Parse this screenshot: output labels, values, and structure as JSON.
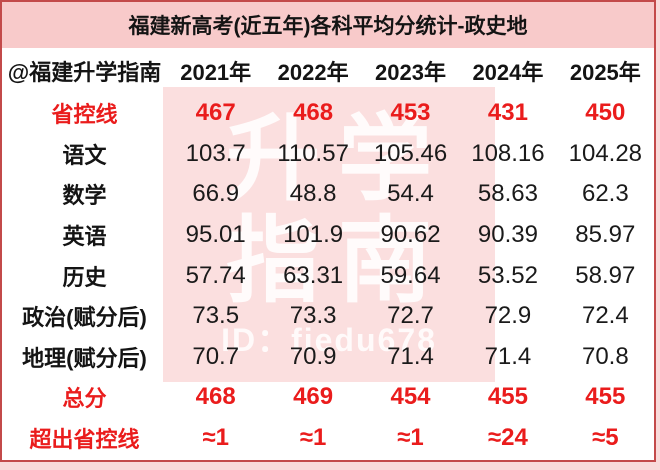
{
  "title": "福建新高考(近五年)各科平均分统计-政史地",
  "watermark": {
    "line1": "升学",
    "line2": "指南",
    "id_line": "ID：fiedu678"
  },
  "table": {
    "corner_label": "@福建升学指南",
    "years": [
      "2021年",
      "2022年",
      "2023年",
      "2024年",
      "2025年"
    ],
    "rows": [
      {
        "label": "省控线",
        "values": [
          "467",
          "468",
          "453",
          "431",
          "450"
        ],
        "highlight": true
      },
      {
        "label": "语文",
        "values": [
          "103.7",
          "110.57",
          "105.46",
          "108.16",
          "104.28"
        ],
        "highlight": false
      },
      {
        "label": "数学",
        "values": [
          "66.9",
          "48.8",
          "54.4",
          "58.63",
          "62.3"
        ],
        "highlight": false
      },
      {
        "label": "英语",
        "values": [
          "95.01",
          "101.9",
          "90.62",
          "90.39",
          "85.97"
        ],
        "highlight": false
      },
      {
        "label": "历史",
        "values": [
          "57.74",
          "63.31",
          "59.64",
          "53.52",
          "58.97"
        ],
        "highlight": false
      },
      {
        "label": "政治(赋分后)",
        "values": [
          "73.5",
          "73.3",
          "72.7",
          "72.9",
          "72.4"
        ],
        "highlight": false
      },
      {
        "label": "地理(赋分后)",
        "values": [
          "70.7",
          "70.9",
          "71.4",
          "71.4",
          "70.8"
        ],
        "highlight": false
      },
      {
        "label": "总分",
        "values": [
          "468",
          "469",
          "454",
          "455",
          "455"
        ],
        "highlight": true
      },
      {
        "label": "超出省控线",
        "values": [
          "≈1",
          "≈1",
          "≈1",
          "≈24",
          "≈5"
        ],
        "highlight": true
      }
    ]
  },
  "colors": {
    "accent_red": "#ea1c1c",
    "border_red": "#c34a4a",
    "title_bg": "#f8caca",
    "watermark_panel_bg": "#fbdfdf",
    "page_margin_bg": "#f9dada",
    "text_black": "#141414"
  },
  "chart_data": {
    "type": "table",
    "title": "福建新高考(近五年)各科平均分统计-政史地",
    "categories": [
      "2021年",
      "2022年",
      "2023年",
      "2024年",
      "2025年"
    ],
    "series": [
      {
        "name": "省控线",
        "values": [
          467,
          468,
          453,
          431,
          450
        ]
      },
      {
        "name": "语文",
        "values": [
          103.7,
          110.57,
          105.46,
          108.16,
          104.28
        ]
      },
      {
        "name": "数学",
        "values": [
          66.9,
          48.8,
          54.4,
          58.63,
          62.3
        ]
      },
      {
        "name": "英语",
        "values": [
          95.01,
          101.9,
          90.62,
          90.39,
          85.97
        ]
      },
      {
        "name": "历史",
        "values": [
          57.74,
          63.31,
          59.64,
          53.52,
          58.97
        ]
      },
      {
        "name": "政治(赋分后)",
        "values": [
          73.5,
          73.3,
          72.7,
          72.9,
          72.4
        ]
      },
      {
        "name": "地理(赋分后)",
        "values": [
          70.7,
          70.9,
          71.4,
          71.4,
          70.8
        ]
      },
      {
        "name": "总分",
        "values": [
          468,
          469,
          454,
          455,
          455
        ]
      },
      {
        "name": "超出省控线",
        "values": [
          "≈1",
          "≈1",
          "≈1",
          "≈24",
          "≈5"
        ]
      }
    ]
  }
}
